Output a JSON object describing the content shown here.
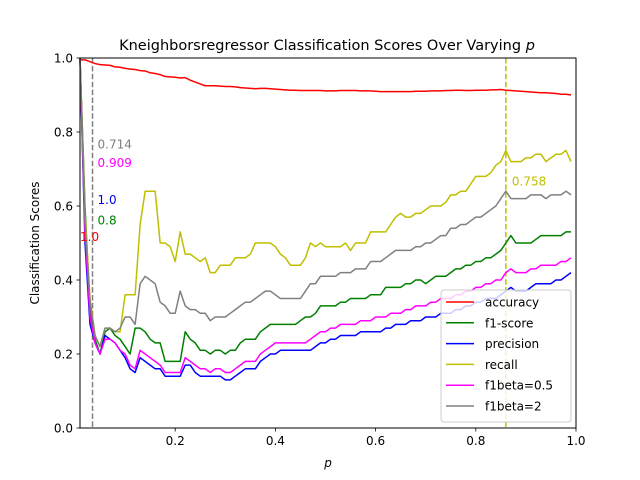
{
  "chart_data": {
    "type": "line",
    "title_prefix": "Kneighborsregressor Classification Scores Over Varying ",
    "title_var": "p",
    "xlabel": "p",
    "ylabel": "Classification Scores",
    "xlim": [
      0.01,
      1.0
    ],
    "ylim": [
      0.0,
      1.0
    ],
    "xticks": [
      0.2,
      0.4,
      0.6,
      0.8,
      1.0
    ],
    "xtick_labels": [
      "0.2",
      "0.4",
      "0.6",
      "0.8",
      "1.0"
    ],
    "yticks": [
      0.0,
      0.2,
      0.4,
      0.6,
      0.8,
      1.0
    ],
    "ytick_labels": [
      "0.0",
      "0.2",
      "0.4",
      "0.6",
      "0.8",
      "1.0"
    ],
    "grid": false,
    "legend_position": "lower right",
    "x": [
      0.01,
      0.02,
      0.03,
      0.04,
      0.05,
      0.06,
      0.07,
      0.08,
      0.09,
      0.1,
      0.11,
      0.12,
      0.13,
      0.14,
      0.15,
      0.16,
      0.17,
      0.18,
      0.19,
      0.2,
      0.21,
      0.22,
      0.23,
      0.24,
      0.25,
      0.26,
      0.27,
      0.28,
      0.29,
      0.3,
      0.31,
      0.32,
      0.33,
      0.34,
      0.35,
      0.36,
      0.37,
      0.38,
      0.39,
      0.4,
      0.41,
      0.42,
      0.43,
      0.44,
      0.45,
      0.46,
      0.47,
      0.48,
      0.49,
      0.5,
      0.51,
      0.52,
      0.53,
      0.54,
      0.55,
      0.56,
      0.57,
      0.58,
      0.59,
      0.6,
      0.61,
      0.62,
      0.63,
      0.64,
      0.65,
      0.66,
      0.67,
      0.68,
      0.69,
      0.7,
      0.71,
      0.72,
      0.73,
      0.74,
      0.75,
      0.76,
      0.77,
      0.78,
      0.79,
      0.8,
      0.81,
      0.82,
      0.83,
      0.84,
      0.85,
      0.86,
      0.87,
      0.88,
      0.89,
      0.9,
      0.91,
      0.92,
      0.93,
      0.94,
      0.95,
      0.96,
      0.97,
      0.98,
      0.99
    ],
    "series": [
      {
        "name": "accuracy",
        "color": "#ff0000",
        "values": [
          0.995,
          0.995,
          0.99,
          0.985,
          0.982,
          0.981,
          0.98,
          0.976,
          0.975,
          0.972,
          0.97,
          0.969,
          0.966,
          0.965,
          0.96,
          0.958,
          0.955,
          0.95,
          0.949,
          0.948,
          0.946,
          0.947,
          0.94,
          0.935,
          0.93,
          0.925,
          0.925,
          0.925,
          0.924,
          0.923,
          0.923,
          0.922,
          0.92,
          0.919,
          0.918,
          0.917,
          0.918,
          0.918,
          0.917,
          0.916,
          0.915,
          0.914,
          0.913,
          0.913,
          0.912,
          0.912,
          0.912,
          0.912,
          0.912,
          0.911,
          0.911,
          0.911,
          0.912,
          0.912,
          0.912,
          0.912,
          0.911,
          0.911,
          0.911,
          0.91,
          0.909,
          0.909,
          0.909,
          0.909,
          0.909,
          0.909,
          0.909,
          0.91,
          0.91,
          0.91,
          0.911,
          0.911,
          0.911,
          0.912,
          0.912,
          0.913,
          0.913,
          0.912,
          0.912,
          0.913,
          0.913,
          0.913,
          0.914,
          0.914,
          0.915,
          0.913,
          0.912,
          0.911,
          0.91,
          0.909,
          0.908,
          0.907,
          0.906,
          0.906,
          0.905,
          0.904,
          0.902,
          0.902,
          0.9
        ]
      },
      {
        "name": "f1-score",
        "color": "#008000",
        "values": [
          1.0,
          0.6,
          0.32,
          0.24,
          0.2,
          0.26,
          0.27,
          0.25,
          0.24,
          0.22,
          0.2,
          0.27,
          0.27,
          0.26,
          0.24,
          0.23,
          0.23,
          0.18,
          0.18,
          0.18,
          0.18,
          0.26,
          0.24,
          0.23,
          0.21,
          0.21,
          0.2,
          0.21,
          0.21,
          0.2,
          0.21,
          0.21,
          0.23,
          0.24,
          0.24,
          0.24,
          0.26,
          0.27,
          0.28,
          0.28,
          0.28,
          0.28,
          0.28,
          0.28,
          0.29,
          0.3,
          0.3,
          0.31,
          0.33,
          0.33,
          0.33,
          0.33,
          0.34,
          0.34,
          0.35,
          0.35,
          0.35,
          0.35,
          0.36,
          0.36,
          0.36,
          0.38,
          0.38,
          0.38,
          0.38,
          0.39,
          0.39,
          0.4,
          0.4,
          0.39,
          0.4,
          0.41,
          0.41,
          0.41,
          0.42,
          0.43,
          0.43,
          0.44,
          0.44,
          0.45,
          0.45,
          0.46,
          0.46,
          0.47,
          0.48,
          0.5,
          0.52,
          0.5,
          0.5,
          0.5,
          0.5,
          0.51,
          0.52,
          0.52,
          0.52,
          0.52,
          0.52,
          0.53,
          0.53
        ]
      },
      {
        "name": "precision",
        "color": "#0000ff",
        "values": [
          1.0,
          0.5,
          0.28,
          0.23,
          0.2,
          0.25,
          0.24,
          0.23,
          0.21,
          0.19,
          0.16,
          0.15,
          0.19,
          0.18,
          0.17,
          0.16,
          0.16,
          0.14,
          0.14,
          0.14,
          0.14,
          0.17,
          0.17,
          0.15,
          0.14,
          0.14,
          0.14,
          0.14,
          0.14,
          0.13,
          0.13,
          0.14,
          0.15,
          0.16,
          0.16,
          0.16,
          0.18,
          0.19,
          0.2,
          0.2,
          0.21,
          0.21,
          0.21,
          0.21,
          0.21,
          0.21,
          0.21,
          0.22,
          0.23,
          0.23,
          0.24,
          0.24,
          0.25,
          0.25,
          0.25,
          0.25,
          0.26,
          0.26,
          0.26,
          0.26,
          0.26,
          0.27,
          0.27,
          0.28,
          0.28,
          0.28,
          0.29,
          0.29,
          0.29,
          0.3,
          0.3,
          0.3,
          0.31,
          0.31,
          0.31,
          0.32,
          0.32,
          0.33,
          0.33,
          0.34,
          0.34,
          0.35,
          0.35,
          0.35,
          0.36,
          0.37,
          0.38,
          0.37,
          0.37,
          0.37,
          0.38,
          0.39,
          0.39,
          0.39,
          0.39,
          0.4,
          0.4,
          0.41,
          0.42
        ]
      },
      {
        "name": "recall",
        "color": "#bfbf00",
        "values": [
          1.0,
          0.58,
          0.35,
          0.25,
          0.22,
          0.27,
          0.27,
          0.26,
          0.26,
          0.36,
          0.36,
          0.36,
          0.55,
          0.64,
          0.64,
          0.64,
          0.5,
          0.5,
          0.49,
          0.45,
          0.53,
          0.47,
          0.47,
          0.46,
          0.45,
          0.46,
          0.42,
          0.42,
          0.44,
          0.44,
          0.44,
          0.46,
          0.46,
          0.46,
          0.47,
          0.5,
          0.5,
          0.5,
          0.5,
          0.49,
          0.47,
          0.46,
          0.44,
          0.44,
          0.44,
          0.46,
          0.5,
          0.49,
          0.5,
          0.49,
          0.49,
          0.49,
          0.49,
          0.5,
          0.48,
          0.5,
          0.5,
          0.5,
          0.53,
          0.53,
          0.53,
          0.53,
          0.55,
          0.57,
          0.58,
          0.57,
          0.57,
          0.58,
          0.58,
          0.59,
          0.6,
          0.6,
          0.6,
          0.61,
          0.63,
          0.63,
          0.64,
          0.64,
          0.66,
          0.68,
          0.68,
          0.68,
          0.69,
          0.71,
          0.72,
          0.75,
          0.72,
          0.72,
          0.72,
          0.73,
          0.73,
          0.74,
          0.74,
          0.72,
          0.73,
          0.74,
          0.74,
          0.75,
          0.72
        ]
      },
      {
        "name": "f1beta=0.5",
        "color": "#ff00ff",
        "values": [
          1.0,
          0.53,
          0.3,
          0.23,
          0.2,
          0.24,
          0.24,
          0.23,
          0.21,
          0.2,
          0.17,
          0.16,
          0.21,
          0.2,
          0.19,
          0.18,
          0.17,
          0.15,
          0.15,
          0.15,
          0.15,
          0.19,
          0.18,
          0.17,
          0.16,
          0.16,
          0.15,
          0.16,
          0.16,
          0.15,
          0.15,
          0.16,
          0.17,
          0.18,
          0.18,
          0.18,
          0.2,
          0.21,
          0.22,
          0.23,
          0.23,
          0.23,
          0.23,
          0.23,
          0.23,
          0.23,
          0.24,
          0.25,
          0.26,
          0.26,
          0.27,
          0.27,
          0.28,
          0.28,
          0.28,
          0.28,
          0.29,
          0.29,
          0.29,
          0.3,
          0.3,
          0.3,
          0.31,
          0.31,
          0.31,
          0.32,
          0.32,
          0.33,
          0.33,
          0.33,
          0.34,
          0.34,
          0.35,
          0.35,
          0.35,
          0.36,
          0.36,
          0.37,
          0.37,
          0.38,
          0.38,
          0.39,
          0.39,
          0.4,
          0.4,
          0.42,
          0.43,
          0.42,
          0.42,
          0.42,
          0.43,
          0.43,
          0.44,
          0.44,
          0.44,
          0.44,
          0.45,
          0.45,
          0.46
        ]
      },
      {
        "name": "f1beta=2",
        "color": "#808080",
        "values": [
          1.0,
          0.56,
          0.34,
          0.25,
          0.22,
          0.27,
          0.27,
          0.26,
          0.27,
          0.3,
          0.3,
          0.28,
          0.39,
          0.41,
          0.4,
          0.39,
          0.34,
          0.33,
          0.31,
          0.31,
          0.37,
          0.33,
          0.32,
          0.32,
          0.31,
          0.31,
          0.29,
          0.3,
          0.3,
          0.3,
          0.31,
          0.32,
          0.33,
          0.34,
          0.34,
          0.35,
          0.36,
          0.37,
          0.37,
          0.36,
          0.35,
          0.35,
          0.35,
          0.35,
          0.35,
          0.37,
          0.39,
          0.39,
          0.41,
          0.41,
          0.41,
          0.41,
          0.42,
          0.42,
          0.42,
          0.43,
          0.43,
          0.43,
          0.45,
          0.45,
          0.45,
          0.46,
          0.47,
          0.48,
          0.48,
          0.48,
          0.48,
          0.49,
          0.49,
          0.5,
          0.5,
          0.51,
          0.52,
          0.52,
          0.54,
          0.54,
          0.55,
          0.55,
          0.56,
          0.57,
          0.57,
          0.58,
          0.59,
          0.6,
          0.62,
          0.64,
          0.62,
          0.62,
          0.62,
          0.62,
          0.63,
          0.63,
          0.63,
          0.62,
          0.63,
          0.63,
          0.63,
          0.64,
          0.63
        ]
      }
    ],
    "vlines": [
      {
        "x": 0.035,
        "color": "#808080",
        "style": "dashed"
      },
      {
        "x": 0.86,
        "color": "#bfbf00",
        "style": "dashed"
      }
    ],
    "annotations": [
      {
        "text": "0.714",
        "x": 0.045,
        "y": 0.755,
        "color": "#808080"
      },
      {
        "text": "0.909",
        "x": 0.045,
        "y": 0.705,
        "color": "#ff00ff"
      },
      {
        "text": "1.0",
        "x": 0.045,
        "y": 0.605,
        "color": "#0000ff"
      },
      {
        "text": "0.8",
        "x": 0.045,
        "y": 0.55,
        "color": "#008000"
      },
      {
        "text": "1.0",
        "x": 0.01,
        "y": 0.505,
        "color": "#ff0000"
      },
      {
        "text": "0.758",
        "x": 0.872,
        "y": 0.655,
        "color": "#bfbf00"
      }
    ]
  }
}
